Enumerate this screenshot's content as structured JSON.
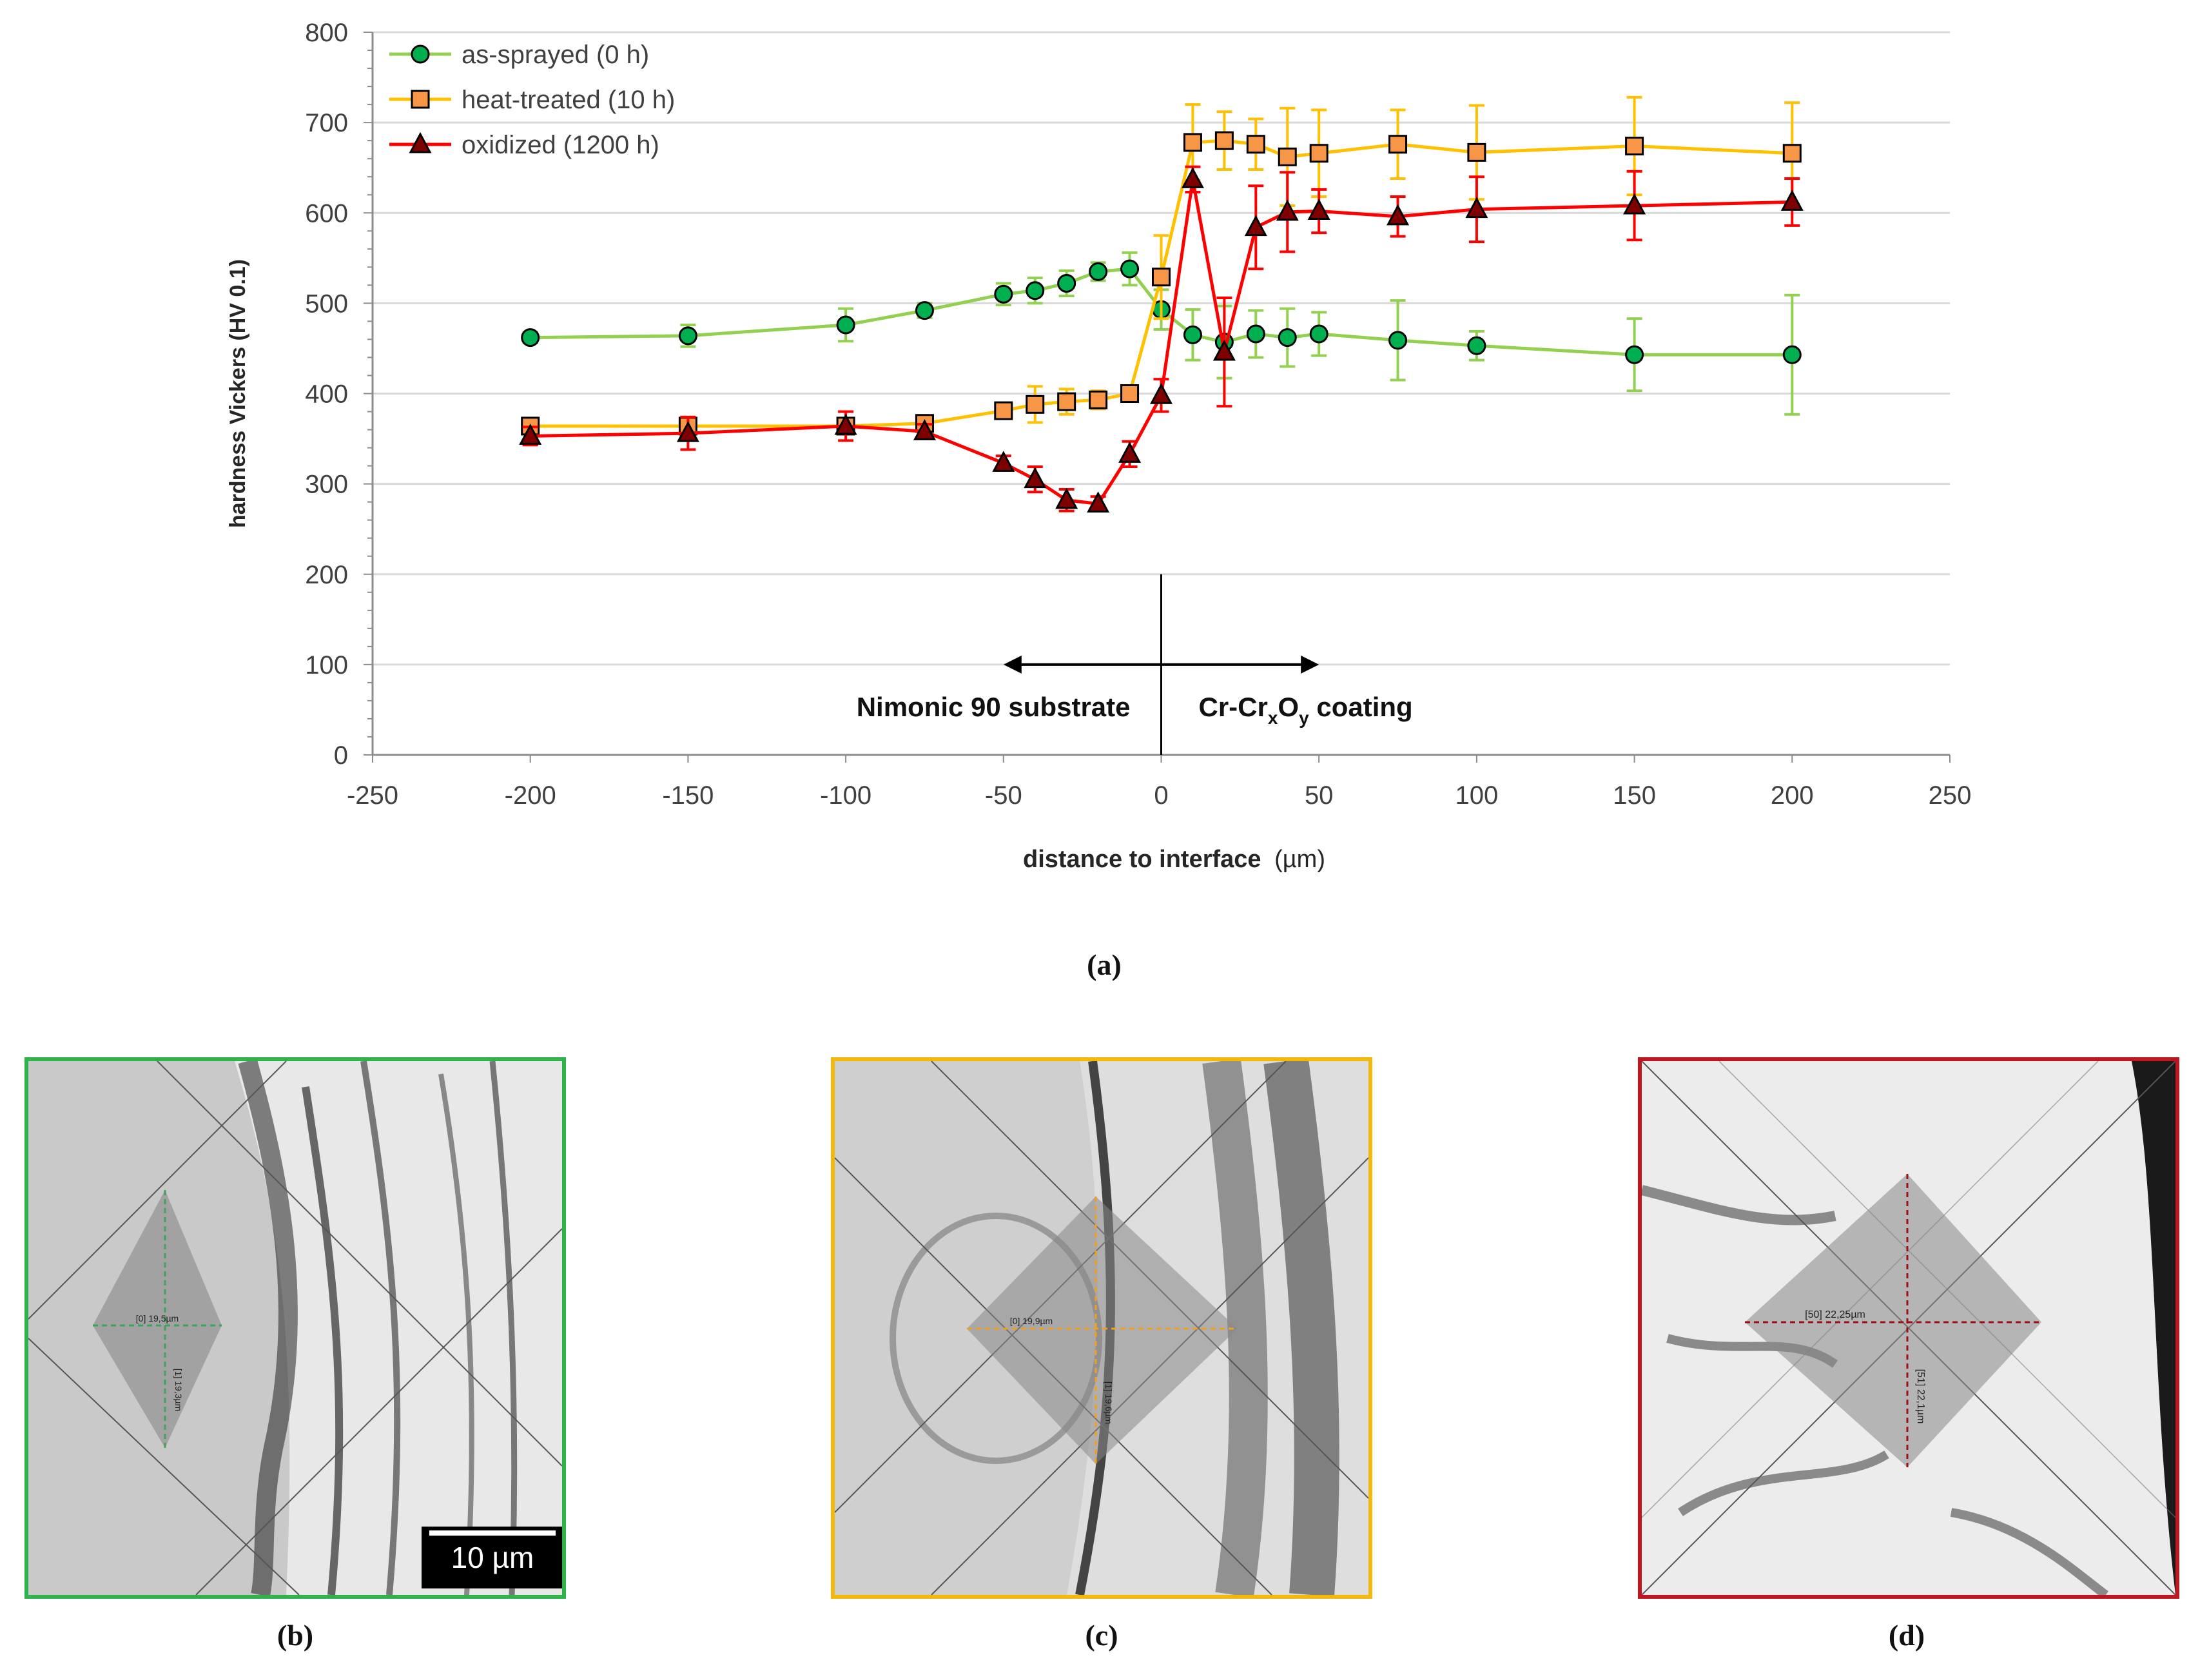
{
  "chart_data": {
    "type": "line",
    "xlabel_bold": "distance to interface",
    "xlabel_unit": "(µm)",
    "ylabel": "hardness Vickers (HV 0.1)",
    "xlim": [
      -250,
      250
    ],
    "ylim": [
      0,
      800
    ],
    "xticks": [
      -250,
      -200,
      -150,
      -100,
      -50,
      0,
      50,
      100,
      150,
      200,
      250
    ],
    "yticks": [
      0,
      100,
      200,
      300,
      400,
      500,
      600,
      700,
      800
    ],
    "grid": "horizontal",
    "legend_position": "top-left",
    "series": [
      {
        "name": "as-sprayed (0 h)",
        "color": "#92D050",
        "marker_fill": "#00B050",
        "marker": "circle",
        "x": [
          -200,
          -150,
          -100,
          -75,
          -50,
          -40,
          -30,
          -20,
          -10,
          0,
          10,
          20,
          30,
          40,
          50,
          75,
          100,
          150,
          200
        ],
        "y": [
          462,
          464,
          476,
          492,
          510,
          514,
          522,
          535,
          538,
          493,
          465,
          457,
          466,
          462,
          466,
          459,
          453,
          443,
          443
        ],
        "err": [
          6,
          12,
          18,
          8,
          12,
          14,
          14,
          10,
          18,
          22,
          28,
          40,
          26,
          32,
          24,
          44,
          16,
          40,
          66
        ]
      },
      {
        "name": "heat-treated (10 h)",
        "color": "#FFC000",
        "marker_fill": "#F79646",
        "marker": "square",
        "x": [
          -200,
          -150,
          -100,
          -75,
          -50,
          -40,
          -30,
          -20,
          -10,
          0,
          10,
          20,
          30,
          40,
          50,
          75,
          100,
          150,
          200
        ],
        "y": [
          364,
          364,
          364,
          367,
          381,
          388,
          391,
          393,
          400,
          529,
          678,
          680,
          676,
          662,
          666,
          676,
          667,
          674,
          666
        ],
        "err": [
          6,
          6,
          8,
          6,
          8,
          20,
          14,
          10,
          8,
          46,
          42,
          32,
          28,
          54,
          48,
          38,
          52,
          54,
          56
        ]
      },
      {
        "name": "oxidized (1200 h)",
        "color": "#FF0000",
        "marker_fill": "#7F0000",
        "marker": "triangle",
        "x": [
          -200,
          -150,
          -100,
          -75,
          -50,
          -40,
          -30,
          -20,
          -10,
          0,
          10,
          20,
          30,
          40,
          50,
          75,
          100,
          150,
          200
        ],
        "y": [
          353,
          356,
          364,
          358,
          323,
          305,
          282,
          278,
          333,
          398,
          637,
          446,
          584,
          601,
          602,
          596,
          604,
          608,
          612
        ],
        "err": [
          10,
          18,
          16,
          8,
          8,
          14,
          12,
          8,
          14,
          18,
          14,
          60,
          46,
          44,
          24,
          22,
          36,
          38,
          26
        ]
      }
    ],
    "annotations": {
      "substrate": "Nimonic 90 substrate",
      "coating_prefix": "Cr-Cr",
      "coating_sub1": "x",
      "coating_mid": "O",
      "coating_sub2": "y",
      "coating_suffix": " coating",
      "interface_x": 0,
      "arrow_from": -50,
      "arrow_to": 50
    }
  },
  "captions": {
    "a": "(a)",
    "b": "(b)",
    "c": "(c)",
    "d": "(d)"
  },
  "panels": {
    "b_color": "#2DB34A",
    "c_color": "#F2B90C",
    "d_color": "#C0141E",
    "scale_bar_label": "10 µm",
    "b_measure_h": "[0] 19,5µm",
    "b_measure_v": "[1] 19,3µm",
    "c_measure_h": "[0] 19,9µm",
    "c_measure_v": "[1] 19,6µm",
    "d_measure_h": "[50] 22,25µm",
    "d_measure_v": "[51] 22,1µm"
  }
}
